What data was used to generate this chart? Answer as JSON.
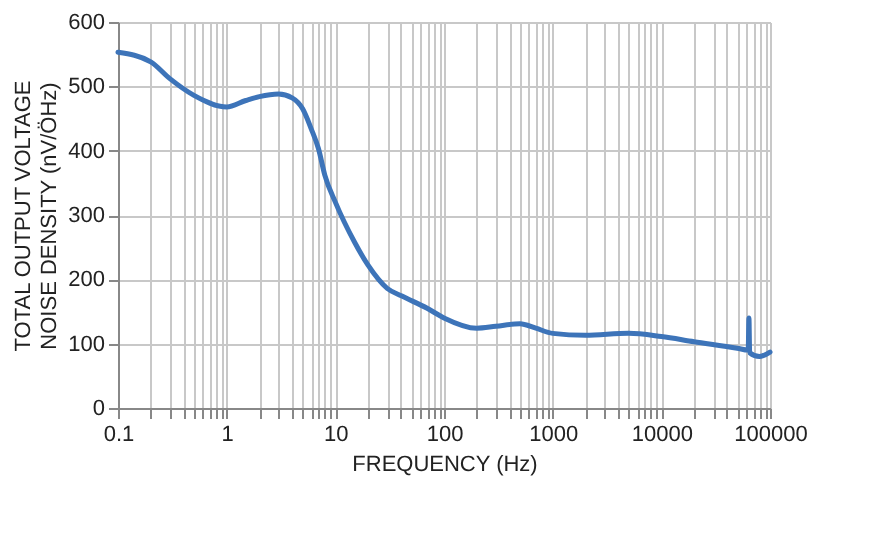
{
  "chart_data": {
    "type": "line",
    "xlabel": "FREQUENCY (Hz)",
    "ylabel": "TOTAL OUTPUT VOLTAGE\nNOISE DENSITY (nV/ÖHz)",
    "x": [
      0.1,
      0.2,
      0.3,
      0.5,
      1,
      1.5,
      2,
      3,
      4,
      5,
      6,
      7,
      8,
      10,
      15,
      20,
      30,
      41,
      70,
      100,
      200,
      300,
      500,
      700,
      1000,
      2000,
      5000,
      10000,
      20000,
      50000,
      63000,
      64000,
      65000,
      80000,
      100000
    ],
    "series": [
      {
        "color": "#3d74b9",
        "values": [
          553,
          538,
          512,
          486,
          468,
          478,
          484,
          488,
          482,
          465,
          434,
          403,
          362,
          320,
          258,
          222,
          186,
          174,
          155,
          140,
          124,
          127,
          131,
          124,
          116,
          113,
          116,
          111,
          103,
          93,
          90,
          140,
          86,
          80,
          87
        ]
      }
    ],
    "log": "x",
    "grid": true,
    "xlim": [
      0.1,
      100000
    ],
    "ylim": [
      0,
      600
    ],
    "xticks": [
      0.1,
      {
        "value": 0.2,
        "label": null
      },
      {
        "value": 0.3,
        "label": null
      },
      {
        "value": 0.4,
        "label": null
      },
      {
        "value": 0.5,
        "label": null
      },
      {
        "value": 0.6,
        "label": null
      },
      {
        "value": 0.7,
        "label": null
      },
      {
        "value": 0.8,
        "label": null
      },
      {
        "value": 0.9,
        "label": null
      },
      1,
      {
        "value": 2,
        "label": null
      },
      {
        "value": 3,
        "label": null
      },
      {
        "value": 4,
        "label": null
      },
      {
        "value": 5,
        "label": null
      },
      {
        "value": 6,
        "label": null
      },
      {
        "value": 7,
        "label": null
      },
      {
        "value": 8,
        "label": null
      },
      {
        "value": 9,
        "label": null
      },
      10,
      {
        "value": 20,
        "label": null
      },
      {
        "value": 30,
        "label": null
      },
      {
        "value": 40,
        "label": null
      },
      {
        "value": 50,
        "label": null
      },
      {
        "value": 60,
        "label": null
      },
      {
        "value": 70,
        "label": null
      },
      {
        "value": 80,
        "label": null
      },
      {
        "value": 90,
        "label": null
      },
      100,
      {
        "value": 200,
        "label": null
      },
      {
        "value": 300,
        "label": null
      },
      {
        "value": 400,
        "label": null
      },
      {
        "value": 500,
        "label": null
      },
      {
        "value": 600,
        "label": null
      },
      {
        "value": 700,
        "label": null
      },
      {
        "value": 800,
        "label": null
      },
      {
        "value": 900,
        "label": null
      },
      1000,
      {
        "value": 2000,
        "label": null
      },
      {
        "value": 3000,
        "label": null
      },
      {
        "value": 4000,
        "label": null
      },
      {
        "value": 5000,
        "label": null
      },
      {
        "value": 6000,
        "label": null
      },
      {
        "value": 7000,
        "label": null
      },
      {
        "value": 8000,
        "label": null
      },
      {
        "value": 9000,
        "label": null
      },
      10000,
      {
        "value": 20000,
        "label": null
      },
      {
        "value": 30000,
        "label": null
      },
      {
        "value": 40000,
        "label": null
      },
      {
        "value": 50000,
        "label": null
      },
      {
        "value": 60000,
        "label": null
      },
      {
        "value": 70000,
        "label": null
      },
      {
        "value": 80000,
        "label": null
      },
      {
        "value": 90000,
        "label": null
      },
      100000
    ],
    "yticks": [
      0,
      100,
      200,
      300,
      400,
      500,
      600
    ]
  }
}
